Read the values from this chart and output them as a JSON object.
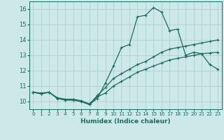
{
  "xlabel": "Humidex (Indice chaleur)",
  "background_color": "#cce8e8",
  "grid_color": "#aacccc",
  "line_color": "#1a6b60",
  "xlim": [
    -0.5,
    23.5
  ],
  "ylim": [
    9.5,
    16.5
  ],
  "x_ticks": [
    0,
    1,
    2,
    3,
    4,
    5,
    6,
    7,
    8,
    9,
    10,
    11,
    12,
    13,
    14,
    15,
    16,
    17,
    18,
    19,
    20,
    21,
    22,
    23
  ],
  "y_ticks": [
    10,
    11,
    12,
    13,
    14,
    15,
    16
  ],
  "line1_x": [
    0,
    1,
    2,
    3,
    4,
    5,
    6,
    7,
    8,
    9,
    10,
    11,
    12,
    13,
    14,
    15,
    16,
    17,
    18,
    19,
    20,
    21,
    22,
    23
  ],
  "line1_y": [
    10.6,
    10.5,
    10.6,
    10.2,
    10.1,
    10.1,
    10.0,
    9.8,
    10.2,
    11.2,
    12.3,
    13.5,
    13.7,
    15.5,
    15.6,
    16.1,
    15.8,
    14.6,
    14.7,
    13.0,
    13.2,
    13.1,
    12.4,
    12.1
  ],
  "line2_x": [
    0,
    1,
    2,
    3,
    4,
    5,
    6,
    7,
    8,
    9,
    10,
    11,
    12,
    13,
    14,
    15,
    16,
    17,
    18,
    19,
    20,
    21,
    22,
    23
  ],
  "line2_y": [
    10.6,
    10.5,
    10.6,
    10.2,
    10.1,
    10.1,
    10.0,
    9.8,
    10.4,
    10.9,
    11.5,
    11.8,
    12.1,
    12.4,
    12.6,
    12.9,
    13.2,
    13.4,
    13.5,
    13.6,
    13.7,
    13.8,
    13.9,
    14.0
  ],
  "line3_x": [
    0,
    1,
    2,
    3,
    4,
    5,
    6,
    7,
    8,
    9,
    10,
    11,
    12,
    13,
    14,
    15,
    16,
    17,
    18,
    19,
    20,
    21,
    22,
    23
  ],
  "line3_y": [
    10.6,
    10.55,
    10.6,
    10.25,
    10.15,
    10.15,
    10.05,
    9.85,
    10.3,
    10.55,
    11.0,
    11.3,
    11.6,
    11.9,
    12.1,
    12.3,
    12.5,
    12.7,
    12.8,
    12.9,
    13.0,
    13.1,
    13.15,
    13.2
  ],
  "marker": "+",
  "markersize": 3.5,
  "linewidth": 0.9
}
